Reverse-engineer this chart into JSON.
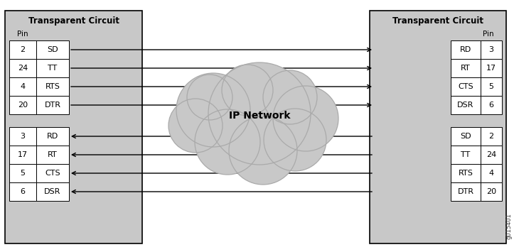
{
  "bg_color": "#c8c8c8",
  "cell_fill": "#ffffff",
  "cloud_fill": "#c8c8c8",
  "left_title": "Transparent Circuit",
  "right_title": "Transparent Circuit",
  "left_pin_label": "Pin",
  "right_pin_label": "Pin",
  "left_top_rows": [
    {
      "pin": "2",
      "sig": "SD"
    },
    {
      "pin": "24",
      "sig": "TT"
    },
    {
      "pin": "4",
      "sig": "RTS"
    },
    {
      "pin": "20",
      "sig": "DTR"
    }
  ],
  "left_bot_rows": [
    {
      "pin": "3",
      "sig": "RD"
    },
    {
      "pin": "17",
      "sig": "RT"
    },
    {
      "pin": "5",
      "sig": "CTS"
    },
    {
      "pin": "6",
      "sig": "DSR"
    }
  ],
  "right_top_rows": [
    {
      "sig": "RD",
      "pin": "3"
    },
    {
      "sig": "RT",
      "pin": "17"
    },
    {
      "sig": "CTS",
      "pin": "5"
    },
    {
      "sig": "DSR",
      "pin": "6"
    }
  ],
  "right_bot_rows": [
    {
      "sig": "SD",
      "pin": "2"
    },
    {
      "sig": "TT",
      "pin": "24"
    },
    {
      "sig": "RTS",
      "pin": "4"
    },
    {
      "sig": "DTR",
      "pin": "20"
    }
  ],
  "cloud_label": "IP Network",
  "watermark": "g015401",
  "fig_width": 7.23,
  "fig_height": 3.55,
  "dpi": 100
}
